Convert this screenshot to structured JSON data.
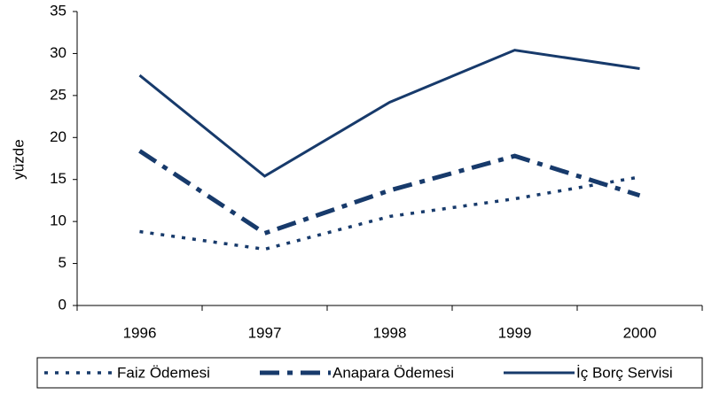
{
  "chart_data": {
    "type": "line",
    "categories": [
      "1996",
      "1997",
      "1998",
      "1999",
      "2000"
    ],
    "y_label": "yüzde",
    "series": [
      {
        "name": "Faiz Ödemesi",
        "color": "#173a6b",
        "style": "dotted",
        "values": [
          8.8,
          6.7,
          10.6,
          12.7,
          15.3
        ]
      },
      {
        "name": "Anapara Ödemesi",
        "color": "#173a6b",
        "style": "dashdot",
        "values": [
          18.4,
          8.6,
          13.7,
          17.8,
          13.1
        ]
      },
      {
        "name": "İç Borç Servisi",
        "color": "#173a6b",
        "style": "solid",
        "values": [
          27.4,
          15.4,
          24.2,
          30.4,
          28.2
        ]
      }
    ],
    "ylim": [
      0,
      35
    ],
    "yticks": [
      0,
      5,
      10,
      15,
      20,
      25,
      30,
      35
    ],
    "grid": false,
    "legend": "bottom"
  }
}
